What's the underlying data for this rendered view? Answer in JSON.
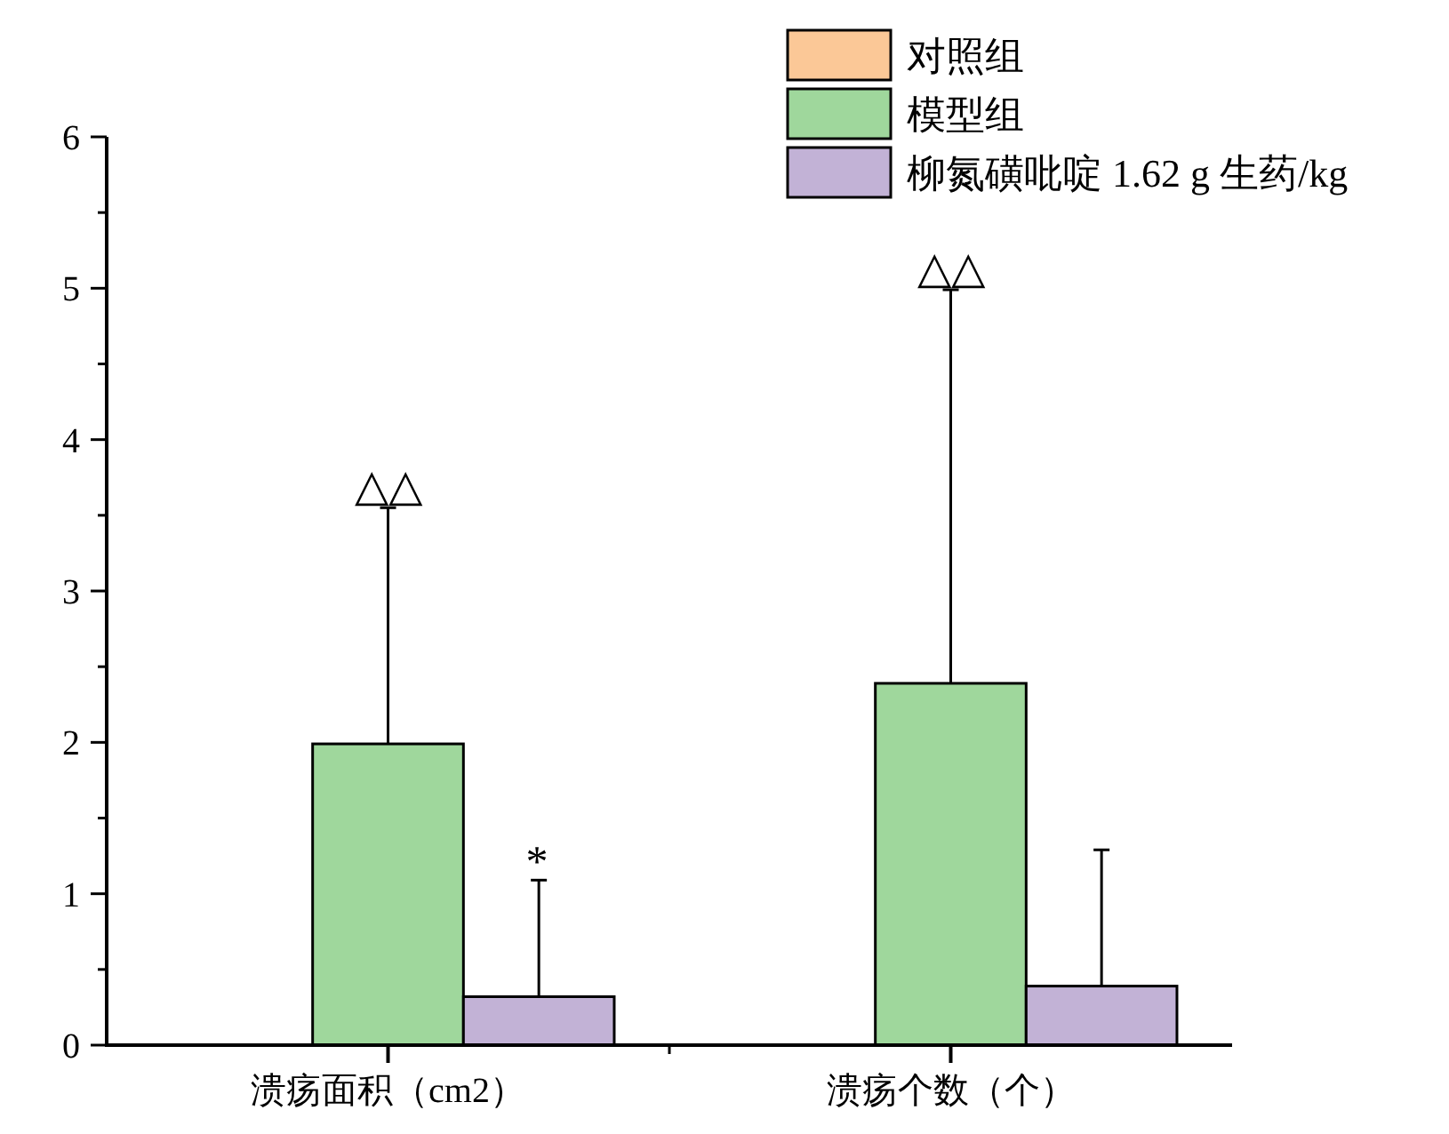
{
  "chart_data": {
    "type": "bar",
    "categories": [
      "溃疡面积（cm2）",
      "溃疡个数（个）"
    ],
    "series": [
      {
        "name": "对照组",
        "color": "#fbc897",
        "values": [
          0,
          0
        ]
      },
      {
        "name": "模型组",
        "color": "#9fd79c",
        "values": [
          1.99,
          2.39
        ],
        "errors": [
          [
            1.99,
            3.55
          ],
          [
            2.39,
            4.99
          ]
        ]
      },
      {
        "name": "柳氮磺吡啶 1.62 g 生药/kg",
        "color": "#c2b2d6",
        "values": [
          0.32,
          0.39
        ],
        "errors": [
          [
            0.32,
            1.09
          ],
          [
            0.39,
            1.29
          ]
        ]
      }
    ],
    "ylim": [
      0,
      6
    ],
    "yticks": [
      0,
      {
        "value": 0.5,
        "label": null
      },
      1,
      {
        "value": 1.5,
        "label": null
      },
      2,
      {
        "value": 2.5,
        "label": null
      },
      3,
      {
        "value": 3.5,
        "label": null
      },
      4,
      {
        "value": 4.5,
        "label": null
      },
      5,
      {
        "value": 5.5,
        "label": null
      },
      6
    ],
    "legend": "top right",
    "annotations": [
      {
        "text": "△△",
        "x": "溃疡面积（cm2）",
        "y": 3.55
      },
      "*",
      {
        "text": "△△",
        "x": "溃疡个数（个）",
        "y": 4.99
      }
    ]
  }
}
